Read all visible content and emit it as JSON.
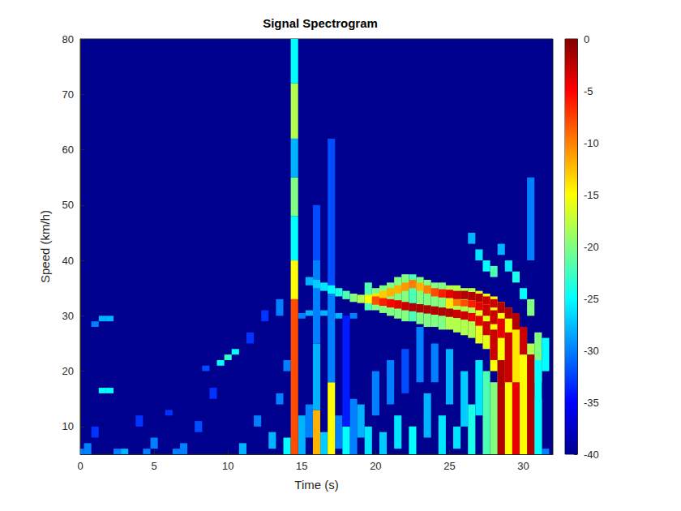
{
  "chart_data": {
    "type": "heatmap",
    "title": "Signal Spectrogram",
    "x_label": "Time (s)",
    "y_label": "Speed (km/h)",
    "xlim": [
      0,
      32
    ],
    "ylim": [
      5,
      80
    ],
    "xticks": [
      0,
      5,
      10,
      15,
      20,
      25,
      30
    ],
    "yticks": [
      10,
      20,
      30,
      40,
      50,
      60,
      70,
      80
    ],
    "grid": false,
    "colorbar_range": [
      -40,
      0
    ],
    "colorbar_ticks": [
      -40,
      -35,
      -30,
      -25,
      -20,
      -15,
      -10,
      -5,
      0
    ],
    "cells": [
      [
        0,
        5,
        6,
        -30
      ],
      [
        0.5,
        5,
        7,
        -30
      ],
      [
        1,
        8,
        10,
        -33
      ],
      [
        1,
        28,
        29,
        -30
      ],
      [
        1.5,
        16,
        17,
        -25
      ],
      [
        1.5,
        29,
        30,
        -28
      ],
      [
        2,
        16,
        17,
        -25
      ],
      [
        2,
        29,
        30,
        -28
      ],
      [
        2.5,
        5,
        6,
        -30
      ],
      [
        3,
        5,
        6,
        -28
      ],
      [
        4,
        10,
        12,
        -33
      ],
      [
        4.5,
        5,
        6,
        -30
      ],
      [
        5,
        6,
        8,
        -30
      ],
      [
        6,
        12,
        13,
        -33
      ],
      [
        6.5,
        5,
        6,
        -30
      ],
      [
        7,
        5,
        7,
        -30
      ],
      [
        8,
        9,
        11,
        -32
      ],
      [
        8.5,
        20,
        21,
        -32
      ],
      [
        9,
        15,
        17,
        -33
      ],
      [
        9.5,
        21,
        22,
        -25
      ],
      [
        10,
        22,
        23,
        -23
      ],
      [
        10.5,
        23,
        24,
        -25
      ],
      [
        11,
        5,
        7,
        -28
      ],
      [
        11.5,
        25,
        27,
        -33
      ],
      [
        12,
        10,
        12,
        -30
      ],
      [
        12.5,
        29,
        31,
        -33
      ],
      [
        13,
        6,
        9,
        -28
      ],
      [
        13.5,
        14,
        16,
        -30
      ],
      [
        13.5,
        30,
        33,
        -30
      ],
      [
        14,
        5,
        8,
        -25
      ],
      [
        14,
        20,
        22,
        -30
      ],
      [
        15,
        5,
        12,
        -28
      ],
      [
        15,
        29.5,
        30.5,
        -30
      ],
      [
        15.5,
        8,
        14,
        -30
      ],
      [
        15.5,
        30,
        31,
        -28
      ],
      [
        16.5,
        5,
        9,
        -27
      ],
      [
        16.5,
        30,
        31,
        -28
      ],
      [
        17.5,
        6,
        12,
        -30
      ],
      [
        17.5,
        29.5,
        30.5,
        -28
      ],
      [
        18.5,
        5,
        15,
        -30
      ],
      [
        18.5,
        29.5,
        30.5,
        -30
      ],
      [
        19,
        8,
        14,
        -28
      ],
      [
        19.5,
        5,
        10,
        -26
      ],
      [
        20,
        12,
        20,
        -30
      ],
      [
        20.5,
        5,
        9,
        -27
      ],
      [
        21,
        14,
        22,
        -30
      ],
      [
        21.5,
        6,
        12,
        -26
      ],
      [
        22,
        16,
        24,
        -32
      ],
      [
        22.5,
        5,
        10,
        -25
      ],
      [
        23,
        18,
        28,
        -30
      ],
      [
        23.5,
        8,
        16,
        -28
      ],
      [
        24,
        18,
        25,
        -30
      ],
      [
        24.5,
        5,
        12,
        -26
      ],
      [
        25,
        14,
        24,
        -28
      ],
      [
        25.5,
        6,
        10,
        -26
      ],
      [
        26,
        10,
        20,
        -27
      ],
      [
        26.5,
        5,
        14,
        -24
      ],
      [
        27,
        12,
        22,
        -26
      ],
      [
        27.5,
        5,
        20,
        -22
      ],
      [
        28,
        5,
        18,
        -20
      ],
      [
        26.5,
        43,
        45,
        -28
      ],
      [
        27,
        40,
        42,
        -26
      ],
      [
        27.5,
        38,
        40,
        -25
      ],
      [
        28,
        37,
        39,
        -22
      ],
      [
        28.5,
        41,
        43,
        -28
      ],
      [
        29,
        38,
        40,
        -26
      ],
      [
        29.5,
        36,
        38,
        -24
      ],
      [
        30,
        33,
        35,
        -25
      ],
      [
        30.5,
        40,
        55,
        -30
      ],
      [
        30.5,
        30,
        33,
        -20
      ],
      [
        31,
        18,
        27,
        -20
      ],
      [
        31.5,
        20,
        26,
        -25
      ],
      [
        31,
        5,
        15,
        -25
      ],
      [
        31.5,
        5,
        6,
        -30
      ],
      [
        14.5,
        5,
        33,
        -8
      ],
      [
        14.5,
        33,
        40,
        -15
      ],
      [
        14.5,
        40,
        48,
        -25
      ],
      [
        14.5,
        48,
        55,
        -20
      ],
      [
        14.5,
        55,
        62,
        -28
      ],
      [
        14.5,
        62,
        72,
        -18
      ],
      [
        14.5,
        72,
        80,
        -25
      ],
      [
        16,
        5,
        13,
        -12
      ],
      [
        16,
        13,
        25,
        -28
      ],
      [
        16,
        25,
        40,
        -30
      ],
      [
        16,
        40,
        50,
        -32
      ],
      [
        17,
        5,
        18,
        -15
      ],
      [
        17,
        18,
        35,
        -30
      ],
      [
        17,
        35,
        62,
        -32
      ],
      [
        18,
        5,
        10,
        -25
      ],
      [
        18,
        10,
        30,
        -34
      ],
      [
        19.5,
        31,
        36,
        -22
      ],
      [
        20,
        31,
        35,
        -20
      ],
      [
        20.5,
        30.5,
        35.5,
        -20
      ],
      [
        21,
        30,
        36,
        -20
      ],
      [
        21.5,
        29.5,
        37,
        -20
      ],
      [
        22,
        29,
        37.5,
        -20
      ],
      [
        22.5,
        29,
        37.5,
        -22
      ],
      [
        23,
        28.5,
        37,
        -20
      ],
      [
        23.5,
        28,
        36.5,
        -20
      ],
      [
        24,
        28,
        36,
        -20
      ],
      [
        24.5,
        27.5,
        36,
        -20
      ],
      [
        25,
        27.5,
        35.5,
        -18
      ],
      [
        25.5,
        27,
        35.5,
        -18
      ],
      [
        26,
        26.5,
        35,
        -18
      ],
      [
        26.5,
        26,
        35,
        -18
      ],
      [
        27,
        25,
        34.5,
        -16
      ],
      [
        27.5,
        24,
        34,
        -16
      ],
      [
        28,
        20,
        33.5,
        -15
      ],
      [
        28.5,
        5,
        32.5,
        -15
      ],
      [
        29,
        5,
        31.5,
        -15
      ],
      [
        29.5,
        5,
        30,
        -14
      ],
      [
        30,
        5,
        28,
        -15
      ],
      [
        30.5,
        5,
        25,
        -18
      ],
      [
        31,
        5,
        22,
        -25
      ],
      [
        15.5,
        35.5,
        37,
        -28
      ],
      [
        16,
        35,
        36.5,
        -27
      ],
      [
        16.5,
        34.5,
        36,
        -26
      ],
      [
        17,
        34,
        35.5,
        -25
      ],
      [
        17.5,
        33.5,
        35,
        -24
      ],
      [
        18,
        33,
        34.5,
        -22
      ],
      [
        18.5,
        32.5,
        34,
        -20
      ],
      [
        19,
        32.3,
        33.8,
        -18
      ],
      [
        19.5,
        32.3,
        33.8,
        -15
      ],
      [
        20,
        32.5,
        34,
        -14
      ],
      [
        20.5,
        33,
        34.5,
        -13
      ],
      [
        21,
        33.5,
        35,
        -12
      ],
      [
        21.5,
        34,
        35.5,
        -12
      ],
      [
        22,
        34.5,
        36,
        -11
      ],
      [
        22.5,
        35,
        36.5,
        -10
      ],
      [
        23,
        34.5,
        36,
        -12
      ],
      [
        23.5,
        34,
        35.5,
        -10
      ],
      [
        24,
        33.5,
        35,
        -8
      ],
      [
        24.5,
        33.3,
        34.8,
        -6
      ],
      [
        25,
        33.2,
        34.7,
        -4
      ],
      [
        25.5,
        33,
        34.5,
        -3
      ],
      [
        26,
        33,
        34.5,
        -2
      ],
      [
        26.5,
        32.8,
        34.3,
        -2
      ],
      [
        27,
        32.5,
        34,
        -2
      ],
      [
        27.5,
        32,
        33.5,
        -3
      ],
      [
        28,
        31.5,
        33,
        -3
      ],
      [
        28.5,
        30.5,
        32.5,
        -2
      ],
      [
        29,
        29.5,
        31.5,
        -2
      ],
      [
        29.5,
        27.5,
        30.5,
        -2
      ],
      [
        30,
        23,
        28,
        -3
      ],
      [
        30.5,
        5,
        23,
        -2
      ],
      [
        20,
        32,
        33.5,
        -8
      ],
      [
        20.5,
        31.8,
        33.2,
        -6
      ],
      [
        21,
        31.5,
        33,
        -5
      ],
      [
        21.5,
        31.3,
        32.8,
        -4
      ],
      [
        22,
        31,
        32.5,
        -3
      ],
      [
        22.5,
        30.8,
        32.3,
        -2
      ],
      [
        23,
        30.6,
        32.1,
        -2
      ],
      [
        23.5,
        30.4,
        31.9,
        -2
      ],
      [
        24,
        30.2,
        31.7,
        -2
      ],
      [
        24.5,
        30,
        31.5,
        -2
      ],
      [
        25,
        29.8,
        31.3,
        -2
      ],
      [
        25.5,
        29.6,
        31.1,
        -3
      ],
      [
        26,
        29.3,
        30.8,
        -3
      ],
      [
        26.5,
        29,
        30.5,
        -4
      ],
      [
        27,
        28.2,
        30,
        -4
      ],
      [
        27.5,
        26.5,
        29,
        -3
      ],
      [
        28,
        22,
        27.5,
        -3
      ],
      [
        28.5,
        5,
        22,
        -2
      ],
      [
        25,
        31.5,
        33,
        -14
      ],
      [
        25.5,
        31.8,
        33,
        -10
      ],
      [
        26,
        31.7,
        32.9,
        -8
      ],
      [
        26.5,
        31.5,
        32.8,
        -6
      ],
      [
        27,
        31,
        32.5,
        -4
      ],
      [
        27.5,
        30,
        32,
        -3
      ],
      [
        28,
        28.5,
        31,
        -3
      ],
      [
        28.5,
        26,
        29.5,
        -4
      ],
      [
        29,
        18,
        27,
        -3
      ],
      [
        29.5,
        5,
        18,
        -4
      ]
    ]
  }
}
